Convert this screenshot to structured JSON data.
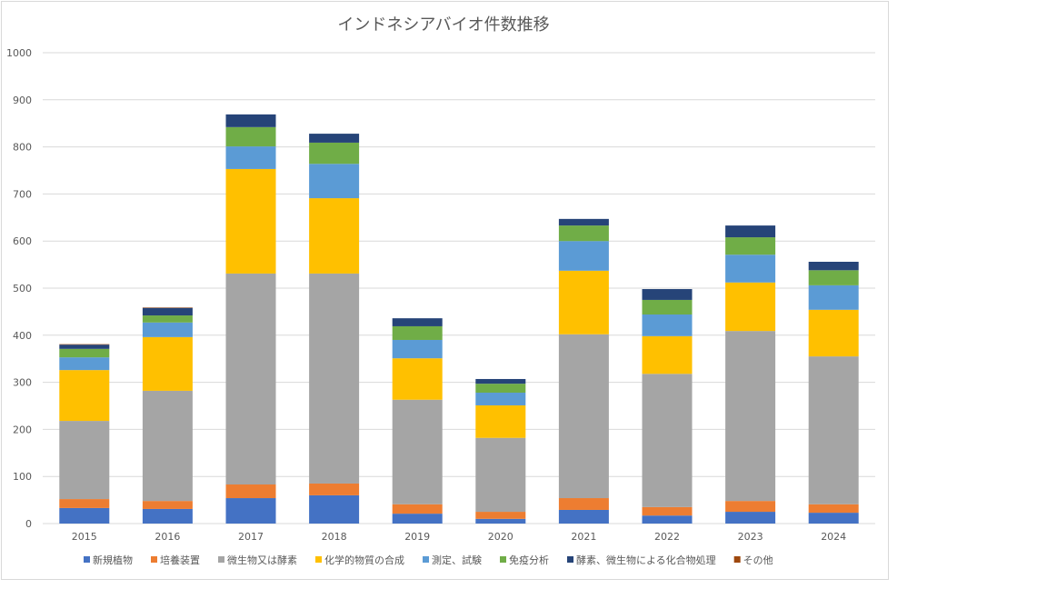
{
  "chart_data": {
    "type": "bar",
    "stacked": true,
    "title": "インドネシアバイオ件数推移",
    "xlabel": "",
    "ylabel": "",
    "ylim": [
      0,
      1000
    ],
    "yticks": [
      0,
      100,
      200,
      300,
      400,
      500,
      600,
      700,
      800,
      900,
      1000
    ],
    "grid": true,
    "legend_position": "bottom",
    "categories": [
      "2015",
      "2016",
      "2017",
      "2018",
      "2019",
      "2020",
      "2021",
      "2022",
      "2023",
      "2024"
    ],
    "series": [
      {
        "name": "新規植物",
        "color": "#4472c4",
        "values": [
          33,
          31,
          54,
          60,
          21,
          10,
          29,
          17,
          25,
          23
        ]
      },
      {
        "name": "培養装置",
        "color": "#ed7d31",
        "values": [
          19,
          17,
          29,
          25,
          20,
          15,
          25,
          18,
          23,
          18
        ]
      },
      {
        "name": "微生物又は酵素",
        "color": "#a5a5a5",
        "values": [
          166,
          234,
          448,
          446,
          222,
          157,
          348,
          283,
          361,
          314
        ]
      },
      {
        "name": "化学的物質の合成",
        "color": "#ffc000",
        "values": [
          108,
          114,
          222,
          160,
          88,
          69,
          135,
          80,
          103,
          99
        ]
      },
      {
        "name": "測定、試験",
        "color": "#5b9bd5",
        "values": [
          27,
          31,
          48,
          73,
          39,
          27,
          63,
          46,
          59,
          52
        ]
      },
      {
        "name": "免疫分析",
        "color": "#70ad47",
        "values": [
          18,
          15,
          41,
          45,
          29,
          19,
          33,
          31,
          37,
          32
        ]
      },
      {
        "name": "酵素、微生物による化合物処理",
        "color": "#264478",
        "values": [
          9,
          16,
          27,
          19,
          17,
          10,
          14,
          23,
          25,
          18
        ]
      },
      {
        "name": "その他",
        "color": "#9e480e",
        "values": [
          1,
          1,
          0,
          0,
          0,
          0,
          0,
          0,
          0,
          0
        ]
      }
    ]
  }
}
